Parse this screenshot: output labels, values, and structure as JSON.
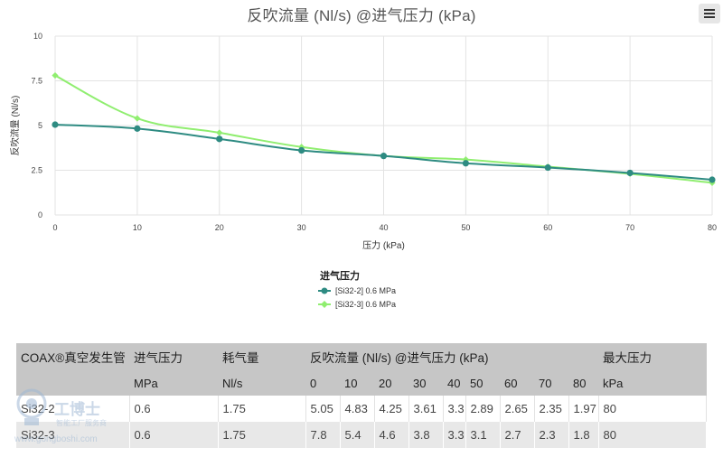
{
  "chart_data": {
    "type": "line",
    "title": "反吹流量 (Nl/s) @进气压力 (kPa)",
    "xlabel": "压力 (kPa)",
    "ylabel": "反吹流量 (Nl/s)",
    "x": [
      0,
      10,
      20,
      30,
      40,
      50,
      60,
      70,
      80
    ],
    "xlim": [
      0,
      80
    ],
    "ylim": [
      0,
      10
    ],
    "yticks": [
      "0",
      "2.5",
      "5",
      "7.5",
      "10"
    ],
    "xticks": [
      "0",
      "10",
      "20",
      "30",
      "40",
      "50",
      "60",
      "70",
      "80"
    ],
    "grid": true,
    "legend_title": "进气压力",
    "legend_position": "bottom-center",
    "series": [
      {
        "name": "[Si32-2] 0.6 MPa",
        "color": "#2e8b82",
        "values": [
          5.05,
          4.83,
          4.25,
          3.61,
          3.3,
          2.89,
          2.65,
          2.35,
          1.97
        ]
      },
      {
        "name": "[Si32-3] 0.6 MPa",
        "color": "#90ee70",
        "values": [
          7.8,
          5.4,
          4.6,
          3.8,
          3.3,
          3.1,
          2.7,
          2.3,
          1.8
        ]
      }
    ]
  },
  "menu": {
    "icon": "hamburger-menu-icon"
  },
  "table": {
    "header1": {
      "product": "COAX®真空发生管",
      "inlet_pressure": "进气压力",
      "air_consumption": "耗气量",
      "blowoff": "反吹流量 (Nl/s) @进气压力 (kPa)",
      "max_pressure": "最大压力"
    },
    "header2": {
      "inlet_unit": "MPa",
      "air_unit": "Nl/s",
      "pressures": [
        "0",
        "10",
        "20",
        "30",
        "40",
        "50",
        "60",
        "70",
        "80"
      ],
      "max_unit": "kPa"
    },
    "rows": [
      {
        "name": "Si32-2",
        "inlet": "0.6",
        "air": "1.75",
        "values": [
          "5.05",
          "4.83",
          "4.25",
          "3.61",
          "3.3",
          "2.89",
          "2.65",
          "2.35",
          "1.97"
        ],
        "max": "80"
      },
      {
        "name": "Si32-3",
        "inlet": "0.6",
        "air": "1.75",
        "values": [
          "7.8",
          "5.4",
          "4.6",
          "3.8",
          "3.3",
          "3.1",
          "2.7",
          "2.3",
          "1.8"
        ],
        "max": "80"
      }
    ]
  },
  "watermark": {
    "main": "工博士",
    "sub": "智能工厂服务商",
    "url": "www.gongboshi.com"
  }
}
